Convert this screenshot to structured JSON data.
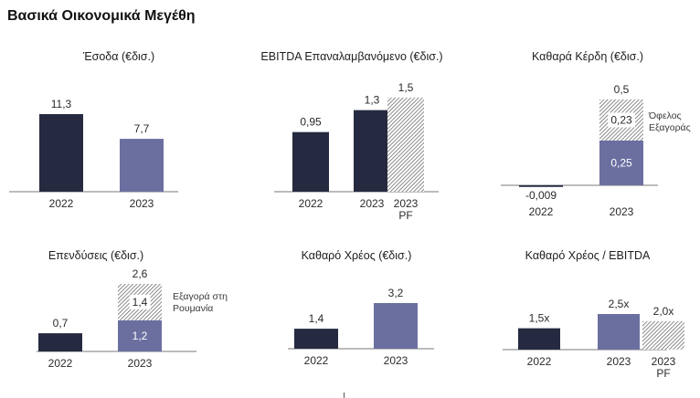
{
  "page": {
    "title": "Βασικά Οικονομικά Μεγέθη"
  },
  "colors": {
    "dark": "#262a40",
    "purple": "#6b6fa0",
    "axis": "#7a7a7a",
    "text": "#2a2a2a"
  },
  "chart_data": [
    {
      "type": "bar",
      "title": "Έσοδα (€δισ.)",
      "categories": [
        "2022",
        "2023"
      ],
      "bars": [
        {
          "category": "2022",
          "segments": [
            {
              "value": 11.3,
              "style": "dark"
            }
          ],
          "total_label": "11,3"
        },
        {
          "category": "2023",
          "segments": [
            {
              "value": 7.7,
              "style": "purple"
            }
          ],
          "total_label": "7,7"
        }
      ],
      "ylim": [
        0,
        12.5
      ]
    },
    {
      "type": "bar",
      "title": "EBITDA Επαναλαμβανόμενο (€δισ.)",
      "categories": [
        "2022",
        "2023",
        "2023 PF"
      ],
      "bars": [
        {
          "category": "2022",
          "segments": [
            {
              "value": 0.95,
              "style": "dark"
            }
          ],
          "total_label": "0,95"
        },
        {
          "category": "2023",
          "segments": [
            {
              "value": 1.3,
              "style": "dark"
            }
          ],
          "total_label": "1,3"
        },
        {
          "category": "2023 PF",
          "segments": [
            {
              "value": 1.5,
              "style": "hatch"
            }
          ],
          "total_label": "1,5"
        }
      ],
      "ylim": [
        0,
        1.6
      ]
    },
    {
      "type": "bar",
      "title": "Καθαρά Κέρδη (€δισ.)",
      "categories": [
        "2022",
        "2023"
      ],
      "bars": [
        {
          "category": "2022",
          "segments": [
            {
              "value": -0.009,
              "style": "dark"
            }
          ],
          "total_label": "-0,009"
        },
        {
          "category": "2023",
          "segments": [
            {
              "value": 0.25,
              "style": "purple",
              "label": "0,25"
            },
            {
              "value": 0.23,
              "style": "hatch",
              "label": "0,23"
            }
          ],
          "total_label": "0,5"
        }
      ],
      "annotation": "Όφελος Εξαγοράς",
      "ylim": [
        0,
        0.5
      ]
    },
    {
      "type": "bar",
      "title": "Επενδύσεις (€δισ.)",
      "categories": [
        "2022",
        "2023"
      ],
      "bars": [
        {
          "category": "2022",
          "segments": [
            {
              "value": 0.7,
              "style": "dark"
            }
          ],
          "total_label": "0,7"
        },
        {
          "category": "2023",
          "segments": [
            {
              "value": 1.2,
              "style": "purple",
              "label": "1,2"
            },
            {
              "value": 1.4,
              "style": "hatch",
              "label": "1,4"
            }
          ],
          "total_label": "2,6"
        }
      ],
      "annotation": "Εξαγορά στη Ρουμανία",
      "ylim": [
        0,
        2.6
      ]
    },
    {
      "type": "bar",
      "title": "Καθαρό Χρέος (€δισ.)",
      "categories": [
        "2022",
        "2023"
      ],
      "bars": [
        {
          "category": "2022",
          "segments": [
            {
              "value": 1.4,
              "style": "dark"
            }
          ],
          "total_label": "1,4"
        },
        {
          "category": "2023",
          "segments": [
            {
              "value": 3.2,
              "style": "purple"
            }
          ],
          "total_label": "3,2"
        }
      ],
      "ylim": [
        0,
        3.2
      ]
    },
    {
      "type": "bar",
      "title": "Καθαρό Χρέος / EBITDA",
      "categories": [
        "2022",
        "2023",
        "2023 PF"
      ],
      "bars": [
        {
          "category": "2022",
          "segments": [
            {
              "value": 1.5,
              "style": "dark"
            }
          ],
          "total_label": "1,5x"
        },
        {
          "category": "2023",
          "segments": [
            {
              "value": 2.5,
              "style": "purple"
            }
          ],
          "total_label": "2,5x"
        },
        {
          "category": "2023 PF",
          "segments": [
            {
              "value": 2.0,
              "style": "hatch"
            }
          ],
          "total_label": "2,0x"
        }
      ],
      "ylim": [
        0,
        2.5
      ]
    }
  ]
}
